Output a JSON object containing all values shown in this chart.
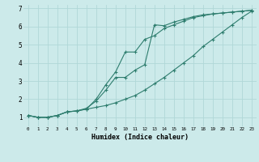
{
  "xlabel": "Humidex (Indice chaleur)",
  "bg_color": "#cceaea",
  "grid_color": "#b0d8d8",
  "line_color": "#2e7d6e",
  "xlim": [
    -0.5,
    23.5
  ],
  "ylim": [
    0.5,
    7.2
  ],
  "xticks": [
    0,
    1,
    2,
    3,
    4,
    5,
    6,
    7,
    8,
    9,
    10,
    11,
    12,
    13,
    14,
    15,
    16,
    17,
    18,
    19,
    20,
    21,
    22,
    23
  ],
  "yticks": [
    1,
    2,
    3,
    4,
    5,
    6,
    7
  ],
  "curve1_x": [
    0,
    1,
    2,
    3,
    4,
    5,
    6,
    7,
    8,
    9,
    10,
    11,
    12,
    13,
    14,
    15,
    16,
    17,
    18,
    19,
    20,
    21,
    22,
    23
  ],
  "curve1_y": [
    1.1,
    1.0,
    1.0,
    1.1,
    1.3,
    1.35,
    1.45,
    1.55,
    1.65,
    1.8,
    2.0,
    2.2,
    2.5,
    2.85,
    3.2,
    3.6,
    4.0,
    4.4,
    4.9,
    5.3,
    5.7,
    6.1,
    6.5,
    6.85
  ],
  "curve2_x": [
    0,
    1,
    2,
    3,
    4,
    5,
    6,
    7,
    8,
    9,
    10,
    11,
    12,
    13,
    14,
    15,
    16,
    17,
    18,
    19,
    20,
    21,
    22,
    23
  ],
  "curve2_y": [
    1.1,
    1.0,
    1.0,
    1.1,
    1.3,
    1.35,
    1.45,
    2.0,
    2.8,
    3.5,
    4.6,
    4.6,
    5.3,
    5.5,
    5.9,
    6.1,
    6.3,
    6.5,
    6.6,
    6.7,
    6.75,
    6.8,
    6.85,
    6.9
  ],
  "curve3_x": [
    0,
    1,
    2,
    3,
    4,
    5,
    6,
    7,
    8,
    9,
    10,
    11,
    12,
    13,
    14,
    15,
    16,
    17,
    18,
    19,
    20,
    21,
    22,
    23
  ],
  "curve3_y": [
    1.1,
    1.0,
    1.0,
    1.1,
    1.3,
    1.35,
    1.5,
    1.9,
    2.5,
    3.2,
    3.2,
    3.6,
    3.9,
    6.1,
    6.05,
    6.25,
    6.4,
    6.55,
    6.65,
    6.7,
    6.75,
    6.8,
    6.85,
    6.9
  ]
}
